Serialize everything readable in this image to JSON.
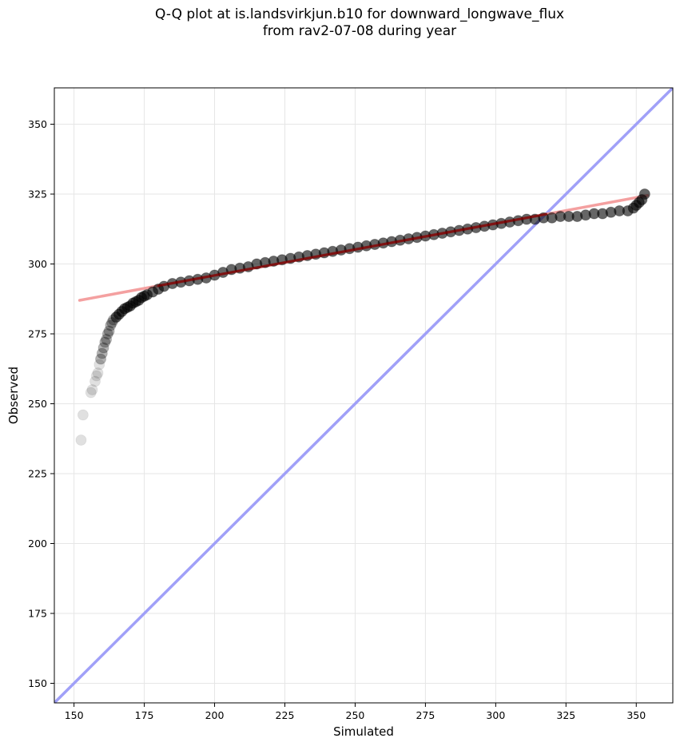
{
  "chart_data": {
    "type": "scatter",
    "title_line1": "Q-Q plot at is.landsvirkjun.b10 for downward_longwave_flux",
    "title_line2": "from rav2-07-08 during year",
    "xlabel": "Simulated",
    "ylabel": "Observed",
    "xlim": [
      143,
      363
    ],
    "ylim": [
      143,
      363
    ],
    "xticks": [
      150,
      175,
      200,
      225,
      250,
      275,
      300,
      325,
      350
    ],
    "yticks": [
      150,
      175,
      200,
      225,
      250,
      275,
      300,
      325,
      350
    ],
    "grid": true,
    "colors": {
      "points": "#000000",
      "fit_line": "#f4a0a0",
      "fit_line_overlap": "#8b0000",
      "identity_line": "#a0a0f8"
    },
    "identity_line": {
      "from": [
        143,
        143
      ],
      "to": [
        363,
        363
      ]
    },
    "fit_line": {
      "from": [
        152,
        287
      ],
      "to": [
        354,
        324.5
      ]
    },
    "quantiles": {
      "x": [
        152.5,
        153.2,
        156,
        156.5,
        157.5,
        158,
        158.5,
        159,
        159.5,
        160,
        160.5,
        161,
        161.5,
        162,
        162.5,
        163,
        163.5,
        164,
        165,
        166,
        167,
        168,
        169,
        170,
        171,
        172,
        173,
        174,
        175,
        176,
        178,
        180,
        182,
        185,
        188,
        191,
        194,
        197,
        200,
        203,
        206,
        209,
        212,
        215,
        218,
        221,
        224,
        227,
        230,
        233,
        236,
        239,
        242,
        245,
        248,
        251,
        254,
        257,
        260,
        263,
        266,
        269,
        272,
        275,
        278,
        281,
        284,
        287,
        290,
        293,
        296,
        299,
        302,
        305,
        308,
        311,
        314,
        317,
        320,
        323,
        326,
        329,
        332,
        335,
        338,
        341,
        344,
        347,
        349,
        350,
        351,
        352,
        353
      ],
      "y": [
        237,
        246,
        254,
        255,
        258,
        260,
        261,
        264,
        266,
        268,
        270,
        272,
        273,
        275,
        276,
        278,
        279,
        280,
        281,
        282,
        283,
        284,
        284.5,
        285,
        286,
        286.5,
        287,
        288,
        288.5,
        289,
        290,
        291,
        292,
        293,
        293.5,
        294,
        294.5,
        295,
        296,
        297,
        298,
        298.5,
        299,
        300,
        300.5,
        301,
        301.5,
        302,
        302.5,
        303,
        303.5,
        304,
        304.5,
        305,
        305.5,
        306,
        306.5,
        307,
        307.5,
        308,
        308.5,
        309,
        309.5,
        310,
        310.5,
        311,
        311.5,
        312,
        312.5,
        313,
        313.5,
        314,
        314.5,
        315,
        315.5,
        316,
        316,
        316.5,
        316.5,
        317,
        317,
        317,
        317.5,
        318,
        318,
        318.5,
        319,
        319,
        320,
        321,
        322,
        323,
        325
      ]
    }
  }
}
